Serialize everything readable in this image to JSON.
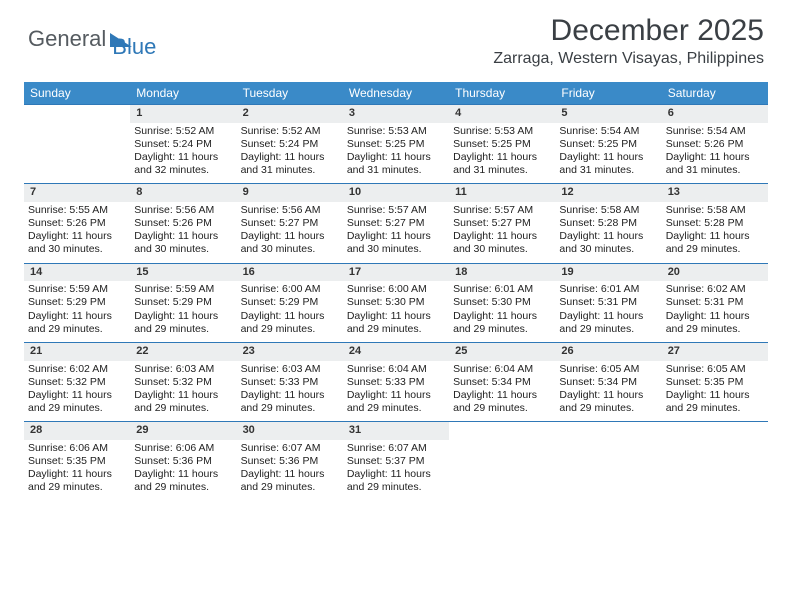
{
  "brand": {
    "part1": "General",
    "part2": "Blue"
  },
  "title": "December 2025",
  "location": "Zarraga, Western Visayas, Philippines",
  "colors": {
    "header_bg": "#3a8ac8",
    "header_text": "#ffffff",
    "daynum_bg": "#eceeef",
    "rule": "#2f78b7",
    "body_text": "#222222",
    "title_text": "#3a3f44",
    "brand_gray": "#555b60",
    "brand_blue": "#2f78b7",
    "page_bg": "#ffffff"
  },
  "fonts": {
    "body_pt": 10.5,
    "header_pt": 12,
    "title_pt": 30,
    "location_pt": 16,
    "brand_pt": 22
  },
  "dow": [
    "Sunday",
    "Monday",
    "Tuesday",
    "Wednesday",
    "Thursday",
    "Friday",
    "Saturday"
  ],
  "weeks": [
    [
      null,
      {
        "n": "1",
        "sr": "5:52 AM",
        "ss": "5:24 PM",
        "dl": "11 hours and 32 minutes."
      },
      {
        "n": "2",
        "sr": "5:52 AM",
        "ss": "5:24 PM",
        "dl": "11 hours and 31 minutes."
      },
      {
        "n": "3",
        "sr": "5:53 AM",
        "ss": "5:25 PM",
        "dl": "11 hours and 31 minutes."
      },
      {
        "n": "4",
        "sr": "5:53 AM",
        "ss": "5:25 PM",
        "dl": "11 hours and 31 minutes."
      },
      {
        "n": "5",
        "sr": "5:54 AM",
        "ss": "5:25 PM",
        "dl": "11 hours and 31 minutes."
      },
      {
        "n": "6",
        "sr": "5:54 AM",
        "ss": "5:26 PM",
        "dl": "11 hours and 31 minutes."
      }
    ],
    [
      {
        "n": "7",
        "sr": "5:55 AM",
        "ss": "5:26 PM",
        "dl": "11 hours and 30 minutes."
      },
      {
        "n": "8",
        "sr": "5:56 AM",
        "ss": "5:26 PM",
        "dl": "11 hours and 30 minutes."
      },
      {
        "n": "9",
        "sr": "5:56 AM",
        "ss": "5:27 PM",
        "dl": "11 hours and 30 minutes."
      },
      {
        "n": "10",
        "sr": "5:57 AM",
        "ss": "5:27 PM",
        "dl": "11 hours and 30 minutes."
      },
      {
        "n": "11",
        "sr": "5:57 AM",
        "ss": "5:27 PM",
        "dl": "11 hours and 30 minutes."
      },
      {
        "n": "12",
        "sr": "5:58 AM",
        "ss": "5:28 PM",
        "dl": "11 hours and 30 minutes."
      },
      {
        "n": "13",
        "sr": "5:58 AM",
        "ss": "5:28 PM",
        "dl": "11 hours and 29 minutes."
      }
    ],
    [
      {
        "n": "14",
        "sr": "5:59 AM",
        "ss": "5:29 PM",
        "dl": "11 hours and 29 minutes."
      },
      {
        "n": "15",
        "sr": "5:59 AM",
        "ss": "5:29 PM",
        "dl": "11 hours and 29 minutes."
      },
      {
        "n": "16",
        "sr": "6:00 AM",
        "ss": "5:29 PM",
        "dl": "11 hours and 29 minutes."
      },
      {
        "n": "17",
        "sr": "6:00 AM",
        "ss": "5:30 PM",
        "dl": "11 hours and 29 minutes."
      },
      {
        "n": "18",
        "sr": "6:01 AM",
        "ss": "5:30 PM",
        "dl": "11 hours and 29 minutes."
      },
      {
        "n": "19",
        "sr": "6:01 AM",
        "ss": "5:31 PM",
        "dl": "11 hours and 29 minutes."
      },
      {
        "n": "20",
        "sr": "6:02 AM",
        "ss": "5:31 PM",
        "dl": "11 hours and 29 minutes."
      }
    ],
    [
      {
        "n": "21",
        "sr": "6:02 AM",
        "ss": "5:32 PM",
        "dl": "11 hours and 29 minutes."
      },
      {
        "n": "22",
        "sr": "6:03 AM",
        "ss": "5:32 PM",
        "dl": "11 hours and 29 minutes."
      },
      {
        "n": "23",
        "sr": "6:03 AM",
        "ss": "5:33 PM",
        "dl": "11 hours and 29 minutes."
      },
      {
        "n": "24",
        "sr": "6:04 AM",
        "ss": "5:33 PM",
        "dl": "11 hours and 29 minutes."
      },
      {
        "n": "25",
        "sr": "6:04 AM",
        "ss": "5:34 PM",
        "dl": "11 hours and 29 minutes."
      },
      {
        "n": "26",
        "sr": "6:05 AM",
        "ss": "5:34 PM",
        "dl": "11 hours and 29 minutes."
      },
      {
        "n": "27",
        "sr": "6:05 AM",
        "ss": "5:35 PM",
        "dl": "11 hours and 29 minutes."
      }
    ],
    [
      {
        "n": "28",
        "sr": "6:06 AM",
        "ss": "5:35 PM",
        "dl": "11 hours and 29 minutes."
      },
      {
        "n": "29",
        "sr": "6:06 AM",
        "ss": "5:36 PM",
        "dl": "11 hours and 29 minutes."
      },
      {
        "n": "30",
        "sr": "6:07 AM",
        "ss": "5:36 PM",
        "dl": "11 hours and 29 minutes."
      },
      {
        "n": "31",
        "sr": "6:07 AM",
        "ss": "5:37 PM",
        "dl": "11 hours and 29 minutes."
      },
      null,
      null,
      null
    ]
  ],
  "labels": {
    "sunrise": "Sunrise:",
    "sunset": "Sunset:",
    "daylight": "Daylight:"
  }
}
